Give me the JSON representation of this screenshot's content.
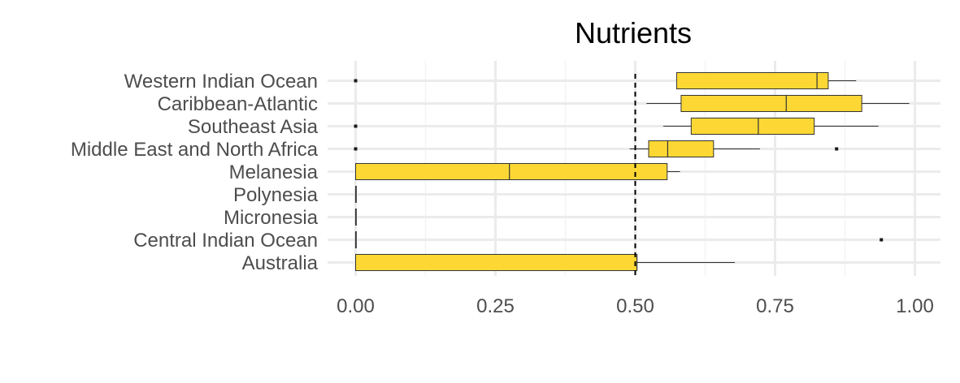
{
  "chart_data": {
    "type": "boxplot",
    "orientation": "horizontal",
    "title": "Nutrients",
    "xlabel": "",
    "ylabel": "",
    "xlim": [
      -0.05,
      1.05
    ],
    "x_ticks": [
      0.0,
      0.25,
      0.5,
      0.75,
      1.0
    ],
    "x_tick_labels": [
      "0.00",
      "0.25",
      "0.50",
      "0.75",
      "1.00"
    ],
    "reference_line": {
      "x": 0.5,
      "style": "dashed"
    },
    "grid": true,
    "legend": "none",
    "box_color": "#FDD835",
    "categories": [
      "Western Indian Ocean",
      "Caribbean-Atlantic",
      "Southeast Asia",
      "Middle East and North Africa",
      "Melanesia",
      "Polynesia",
      "Micronesia",
      "Central Indian Ocean",
      "Australia"
    ],
    "boxes": [
      {
        "category": "Western Indian Ocean",
        "whisker_low": 0.574,
        "q1": 0.574,
        "median": 0.825,
        "q3": 0.845,
        "whisker_high": 0.895,
        "outliers": [
          0.0
        ]
      },
      {
        "category": "Caribbean-Atlantic",
        "whisker_low": 0.52,
        "q1": 0.582,
        "median": 0.77,
        "q3": 0.905,
        "whisker_high": 0.99,
        "outliers": []
      },
      {
        "category": "Southeast Asia",
        "whisker_low": 0.55,
        "q1": 0.6,
        "median": 0.72,
        "q3": 0.82,
        "whisker_high": 0.935,
        "outliers": [
          0.0
        ]
      },
      {
        "category": "Middle East and North Africa",
        "whisker_low": 0.49,
        "q1": 0.524,
        "median": 0.558,
        "q3": 0.64,
        "whisker_high": 0.723,
        "outliers": [
          0.0,
          0.86
        ]
      },
      {
        "category": "Melanesia",
        "whisker_low": 0.0,
        "q1": 0.0,
        "median": 0.275,
        "q3": 0.557,
        "whisker_high": 0.58,
        "outliers": []
      },
      {
        "category": "Polynesia",
        "whisker_low": 0.0,
        "q1": 0.0,
        "median": 0.0,
        "q3": 0.0,
        "whisker_high": 0.0,
        "outliers": []
      },
      {
        "category": "Micronesia",
        "whisker_low": 0.0,
        "q1": 0.0,
        "median": 0.0,
        "q3": 0.0,
        "whisker_high": 0.0,
        "outliers": []
      },
      {
        "category": "Central Indian Ocean",
        "whisker_low": 0.0,
        "q1": 0.0,
        "median": 0.0,
        "q3": 0.0,
        "whisker_high": 0.0,
        "outliers": [
          0.94
        ]
      },
      {
        "category": "Australia",
        "whisker_low": 0.0,
        "q1": 0.0,
        "median": 0.503,
        "q3": 0.503,
        "whisker_high": 0.678,
        "outliers": []
      }
    ]
  }
}
